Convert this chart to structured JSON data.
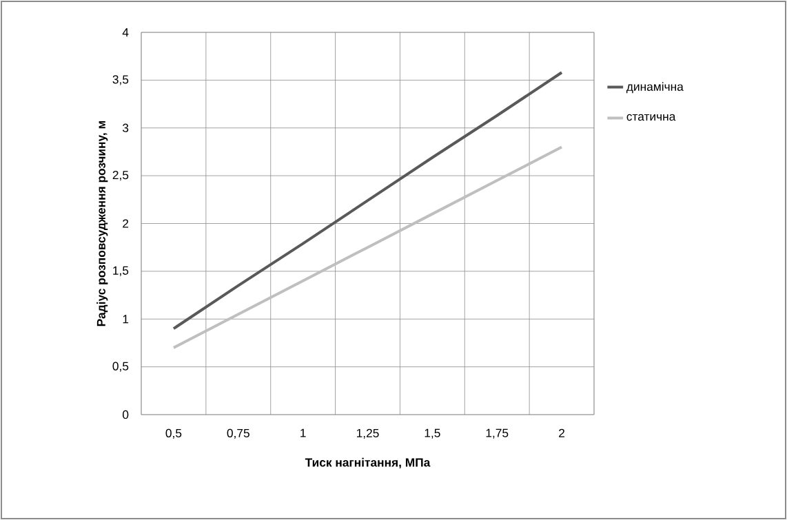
{
  "chart_data": {
    "type": "line",
    "xlabel": "Тиск нагнітання,  МПа",
    "ylabel": "Радіус розповсудження розчину, м",
    "categories": [
      "0,5",
      "0,75",
      "1",
      "1,25",
      "1,5",
      "1,75",
      "2"
    ],
    "series": [
      {
        "name": "динамічна",
        "color": "#595959",
        "values": [
          0.9,
          1.35,
          1.79,
          2.24,
          2.69,
          3.13,
          3.58
        ]
      },
      {
        "name": "статична",
        "color": "#bfbfbf",
        "values": [
          0.7,
          1.05,
          1.4,
          1.75,
          2.1,
          2.45,
          2.8
        ]
      }
    ],
    "ylim": [
      0,
      4
    ],
    "yticks": [
      {
        "value": 0,
        "label": "0"
      },
      {
        "value": 0.5,
        "label": "0,5"
      },
      {
        "value": 1,
        "label": "1"
      },
      {
        "value": 1.5,
        "label": "1,5"
      },
      {
        "value": 2,
        "label": "2"
      },
      {
        "value": 2.5,
        "label": "2,5"
      },
      {
        "value": 3,
        "label": "3"
      },
      {
        "value": 3.5,
        "label": "3,5"
      },
      {
        "value": 4,
        "label": "4"
      }
    ],
    "grid": true,
    "legend": "right",
    "marker": "none",
    "line_style": "solid"
  }
}
